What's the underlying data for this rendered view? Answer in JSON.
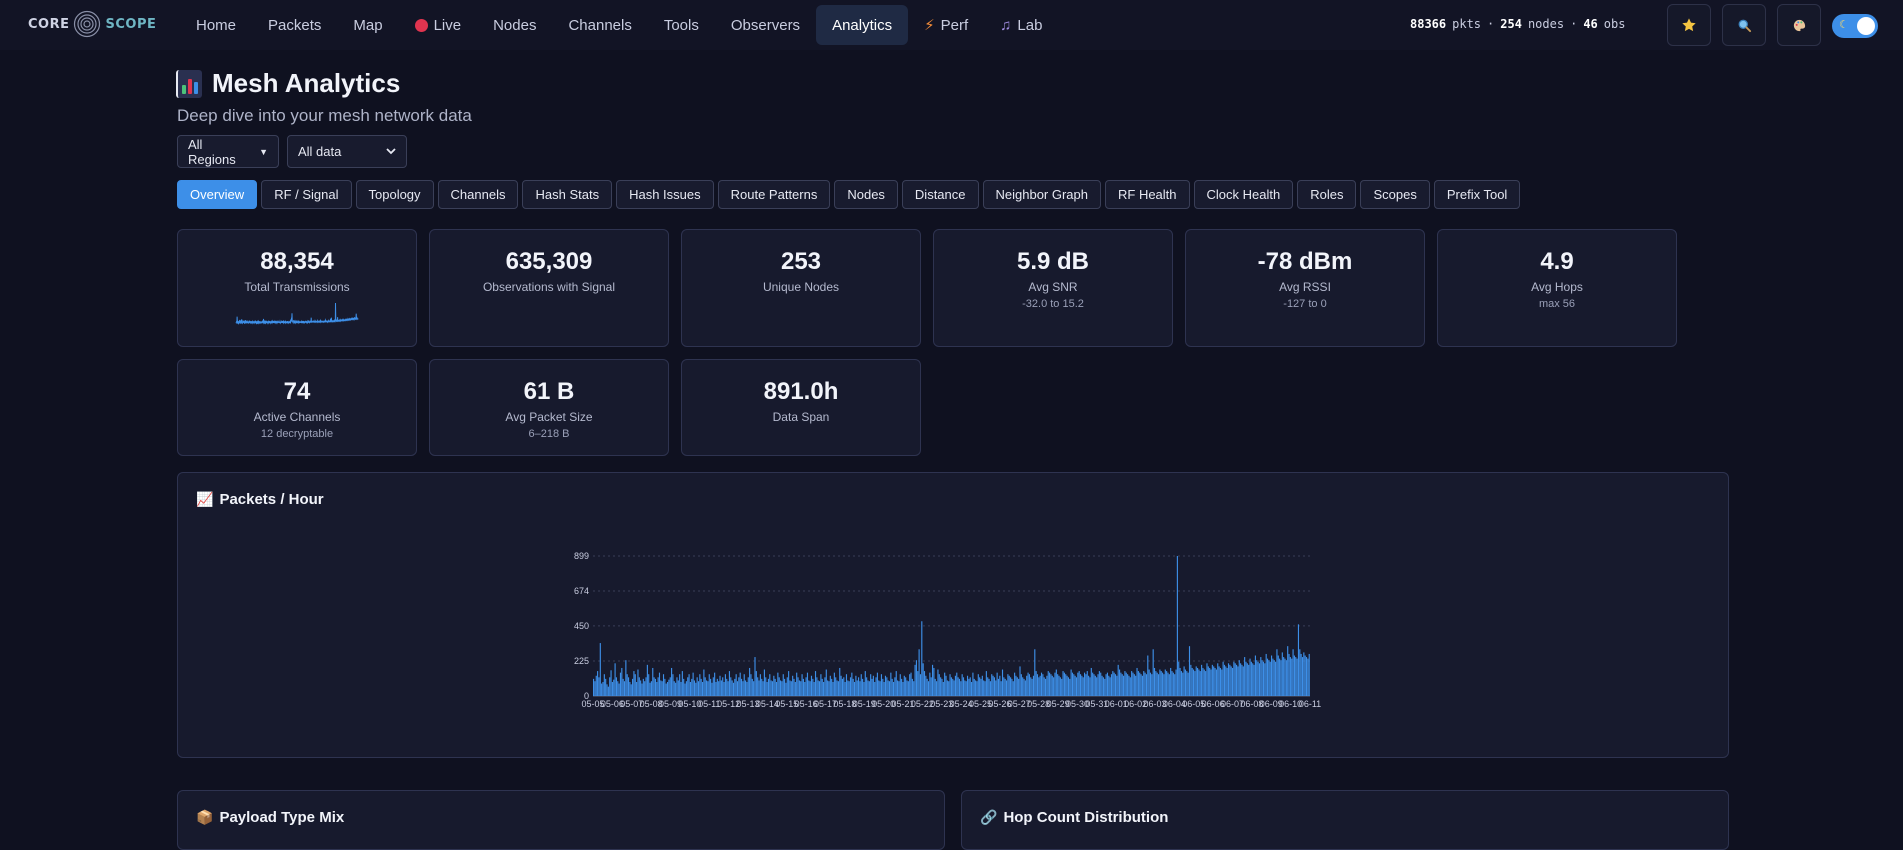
{
  "brand": {
    "left": "CORE",
    "right": "SCOPE"
  },
  "nav": [
    {
      "label": "Home",
      "icon": ""
    },
    {
      "label": "Packets",
      "icon": ""
    },
    {
      "label": "Map",
      "icon": ""
    },
    {
      "label": "Live",
      "icon": "live-dot"
    },
    {
      "label": "Nodes",
      "icon": ""
    },
    {
      "label": "Channels",
      "icon": ""
    },
    {
      "label": "Tools",
      "icon": ""
    },
    {
      "label": "Observers",
      "icon": ""
    },
    {
      "label": "Analytics",
      "icon": ""
    },
    {
      "label": "Perf",
      "icon": "bolt"
    },
    {
      "label": "Lab",
      "icon": "music-note"
    }
  ],
  "active_nav": "Analytics",
  "status": {
    "pkts": "88366",
    "pkts_unit": "pkts",
    "nodes": "254",
    "nodes_unit": "nodes",
    "obs": "46",
    "obs_unit": "obs",
    "sep": "·"
  },
  "header": {
    "title": "Mesh Analytics",
    "subtitle": "Deep dive into your mesh network data"
  },
  "filters": {
    "region": "All Regions",
    "range": "All data"
  },
  "tabs": [
    "Overview",
    "RF / Signal",
    "Topology",
    "Channels",
    "Hash Stats",
    "Hash Issues",
    "Route Patterns",
    "Nodes",
    "Distance",
    "Neighbor Graph",
    "RF Health",
    "Clock Health",
    "Roles",
    "Scopes",
    "Prefix Tool"
  ],
  "active_tab": "Overview",
  "cards": [
    {
      "value": "88,354",
      "label": "Total Transmissions",
      "sub": ""
    },
    {
      "value": "635,309",
      "label": "Observations with Signal",
      "sub": ""
    },
    {
      "value": "253",
      "label": "Unique Nodes",
      "sub": ""
    },
    {
      "value": "5.9 dB",
      "label": "Avg SNR",
      "sub": "-32.0 to 15.2"
    },
    {
      "value": "-78 dBm",
      "label": "Avg RSSI",
      "sub": "-127 to 0"
    },
    {
      "value": "4.9",
      "label": "Avg Hops",
      "sub": "max 56"
    },
    {
      "value": "74",
      "label": "Active Channels",
      "sub": "12 decryptable"
    },
    {
      "value": "61 B",
      "label": "Avg Packet Size",
      "sub": "6–218 B"
    },
    {
      "value": "891.0h",
      "label": "Data Span",
      "sub": ""
    }
  ],
  "panels": {
    "packets_hour": "Packets / Hour",
    "payload_mix": "Payload Type Mix",
    "hop_dist": "Hop Count Distribution"
  },
  "icons": {
    "star": "star-icon",
    "search": "search-icon",
    "palette": "palette-icon",
    "theme": "moon-icon"
  },
  "colors": {
    "accent": "#3d8fe8",
    "bg": "#0f1120",
    "card": "#171a2d"
  },
  "chart_data": {
    "type": "bar",
    "title": "Packets / Hour",
    "xlabel": "",
    "ylabel": "",
    "ylim": [
      0,
      899
    ],
    "yticks": [
      0,
      225,
      450,
      674,
      899
    ],
    "xticks": [
      "05-05",
      "05-06",
      "05-07",
      "05-08",
      "05-09",
      "05-10",
      "05-11",
      "05-12",
      "05-13",
      "05-14",
      "05-15",
      "05-16",
      "05-17",
      "05-18",
      "05-19",
      "05-20",
      "05-21",
      "05-22",
      "05-23",
      "05-24",
      "05-25",
      "05-26",
      "05-27",
      "05-28",
      "05-29",
      "05-30",
      "05-31",
      "06-01",
      "06-02",
      "06-03",
      "06-04",
      "06-05",
      "06-06",
      "06-07",
      "06-08",
      "06-09",
      "06-10",
      "06-11"
    ],
    "grid": true,
    "peaks": {
      "max": 899,
      "second": 480
    },
    "values": [
      110,
      95,
      130,
      160,
      120,
      340,
      80,
      90,
      140,
      110,
      75,
      60,
      120,
      165,
      90,
      105,
      210,
      120,
      95,
      80,
      150,
      180,
      110,
      95,
      230,
      140,
      120,
      90,
      75,
      110,
      160,
      140,
      90,
      170,
      120,
      100,
      80,
      110,
      95,
      120,
      200,
      140,
      85,
      95,
      180,
      120,
      110,
      90,
      120,
      150,
      100,
      95,
      140,
      110,
      80,
      90,
      105,
      120,
      180,
      140,
      95,
      85,
      120,
      100,
      140,
      90,
      160,
      110,
      80,
      95,
      120,
      140,
      90,
      110,
      150,
      100,
      85,
      120,
      95,
      140,
      110,
      90,
      170,
      120,
      100,
      95,
      140,
      110,
      85,
      120,
      150,
      90,
      110,
      95,
      130,
      100,
      120,
      90,
      140,
      110,
      95,
      160,
      120,
      100,
      85,
      110,
      140,
      95,
      120,
      150,
      110,
      95,
      140,
      100,
      90,
      120,
      180,
      140,
      110,
      95,
      250,
      160,
      120,
      100,
      140,
      110,
      95,
      170,
      120,
      90,
      110,
      140,
      100,
      95,
      130,
      110,
      90,
      150,
      120,
      100,
      95,
      140,
      110,
      85,
      120,
      160,
      100,
      95,
      130,
      110,
      90,
      150,
      120,
      100,
      95,
      140,
      110,
      90,
      120,
      150,
      100,
      95,
      130,
      110,
      90,
      160,
      120,
      100,
      95,
      140,
      110,
      90,
      120,
      170,
      100,
      95,
      130,
      110,
      90,
      150,
      120,
      100,
      95,
      180,
      130,
      110,
      120,
      90,
      140,
      100,
      95,
      120,
      150,
      110,
      90,
      130,
      100,
      120,
      95,
      140,
      110,
      90,
      160,
      120,
      100,
      95,
      140,
      110,
      130,
      90,
      120,
      150,
      100,
      95,
      140,
      110,
      90,
      130,
      120,
      100,
      95,
      150,
      110,
      90,
      120,
      160,
      100,
      95,
      140,
      110,
      90,
      130,
      120,
      100,
      95,
      140,
      150,
      110,
      95,
      200,
      230,
      160,
      300,
      140,
      480,
      210,
      160,
      130,
      110,
      95,
      150,
      120,
      200,
      180,
      110,
      95,
      170,
      140,
      120,
      110,
      90,
      150,
      130,
      100,
      95,
      140,
      120,
      110,
      100,
      130,
      150,
      120,
      110,
      95,
      140,
      120,
      100,
      95,
      130,
      110,
      120,
      90,
      150,
      110,
      100,
      95,
      140,
      120,
      110,
      130,
      100,
      95,
      160,
      120,
      110,
      95,
      140,
      130,
      120,
      100,
      150,
      110,
      130,
      95,
      170,
      120,
      110,
      100,
      140,
      130,
      120,
      110,
      95,
      150,
      130,
      120,
      110,
      190,
      140,
      120,
      110,
      100,
      130,
      150,
      140,
      120,
      110,
      130,
      300,
      160,
      140,
      120,
      130,
      150,
      140,
      120,
      110,
      130,
      160,
      150,
      140,
      130,
      120,
      150,
      170,
      140,
      130,
      120,
      110,
      160,
      150,
      140,
      130,
      120,
      110,
      170,
      150,
      140,
      130,
      120,
      150,
      160,
      140,
      130,
      120,
      150,
      140,
      160,
      130,
      120,
      180,
      150,
      140,
      130,
      120,
      140,
      160,
      150,
      130,
      120,
      110,
      140,
      150,
      130,
      120,
      140,
      160,
      150,
      140,
      130,
      200,
      170,
      150,
      140,
      130,
      160,
      150,
      140,
      130,
      120,
      160,
      150,
      140,
      130,
      180,
      160,
      150,
      140,
      130,
      160,
      150,
      140,
      260,
      170,
      150,
      140,
      300,
      180,
      160,
      150,
      140,
      170,
      160,
      150,
      140,
      170,
      160,
      150,
      140,
      180,
      160,
      150,
      140,
      170,
      899,
      220,
      180,
      160,
      150,
      190,
      170,
      160,
      150,
      320,
      200,
      180,
      170,
      160,
      190,
      180,
      170,
      160,
      200,
      180,
      170,
      160,
      210,
      190,
      180,
      170,
      200,
      190,
      180,
      170,
      210,
      190,
      180,
      170,
      220,
      200,
      190,
      180,
      210,
      200,
      190,
      180,
      220,
      210,
      200,
      190,
      230,
      210,
      200,
      190,
      250,
      220,
      210,
      200,
      240,
      220,
      210,
      200,
      260,
      230,
      220,
      210,
      250,
      230,
      220,
      210,
      270,
      240,
      230,
      220,
      260,
      240,
      230,
      220,
      300,
      260,
      240,
      230,
      280,
      250,
      240,
      230,
      320,
      270,
      250,
      240,
      300,
      260,
      250,
      240,
      460,
      300,
      270,
      250,
      280,
      260,
      250,
      240,
      270
    ]
  }
}
